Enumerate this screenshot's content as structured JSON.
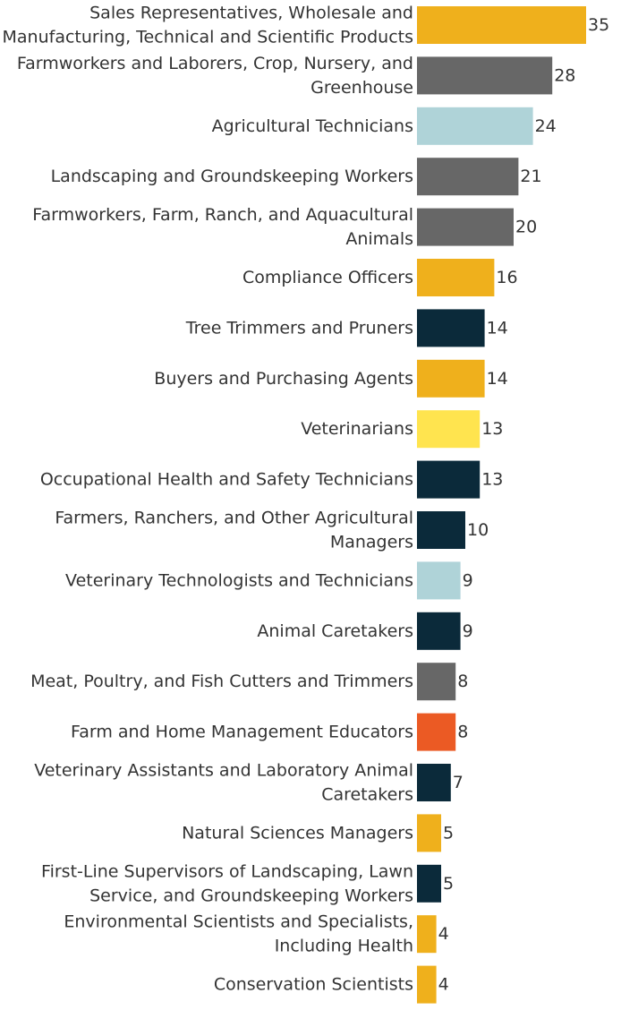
{
  "chart_data": {
    "type": "bar",
    "orientation": "horizontal",
    "title": "",
    "xlabel": "",
    "ylabel": "",
    "xlim": [
      0,
      35
    ],
    "grid": false,
    "legend": "none",
    "categories": [
      [
        "Sales Representatives, Wholesale and",
        "Manufacturing, Technical and Scientific Products"
      ],
      [
        "Farmworkers and Laborers, Crop, Nursery, and",
        "Greenhouse"
      ],
      [
        "Agricultural Technicians"
      ],
      [
        "Landscaping and Groundskeeping Workers"
      ],
      [
        "Farmworkers, Farm, Ranch, and Aquacultural",
        "Animals"
      ],
      [
        "Compliance Officers"
      ],
      [
        "Tree Trimmers and Pruners"
      ],
      [
        "Buyers and Purchasing Agents"
      ],
      [
        "Veterinarians"
      ],
      [
        "Occupational Health and Safety Technicians"
      ],
      [
        "Farmers, Ranchers, and Other Agricultural",
        "Managers"
      ],
      [
        "Veterinary Technologists and Technicians"
      ],
      [
        "Animal Caretakers"
      ],
      [
        "Meat, Poultry, and Fish Cutters and Trimmers"
      ],
      [
        "Farm and Home Management Educators"
      ],
      [
        "Veterinary Assistants and Laboratory Animal",
        "Caretakers"
      ],
      [
        "Natural Sciences Managers"
      ],
      [
        "First-Line Supervisors of Landscaping, Lawn",
        "Service, and Groundskeeping Workers"
      ],
      [
        "Environmental Scientists and Specialists,",
        "Including Health"
      ],
      [
        "Conservation Scientists"
      ]
    ],
    "values": [
      35,
      28,
      24,
      21,
      20,
      16,
      14,
      14,
      13,
      13,
      10,
      9,
      9,
      8,
      8,
      7,
      5,
      5,
      4,
      4
    ],
    "colors": [
      "#EFB01C",
      "#676767",
      "#AFD3D8",
      "#676767",
      "#676767",
      "#EFB01C",
      "#0B2A3A",
      "#EFB01C",
      "#FFE44F",
      "#0B2A3A",
      "#0B2A3A",
      "#AFD3D8",
      "#0B2A3A",
      "#676767",
      "#EB5A24",
      "#0B2A3A",
      "#EFB01C",
      "#0B2A3A",
      "#EFB01C",
      "#EFB01C"
    ]
  }
}
